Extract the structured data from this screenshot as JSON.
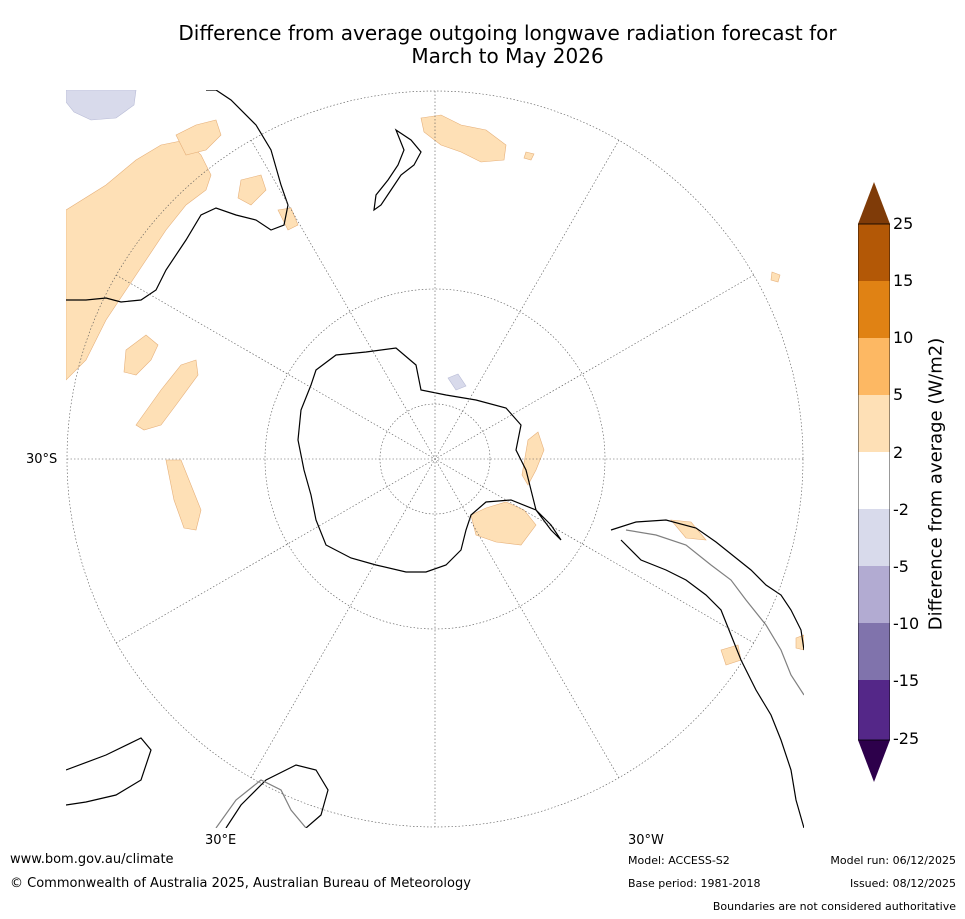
{
  "title": {
    "line1": "Difference from average outgoing longwave radiation forecast for",
    "line2": "March to May 2026"
  },
  "map": {
    "labels": {
      "lat_30s": "30°S",
      "lon_30e": "30°E",
      "lon_30w": "30°W"
    },
    "colors": {
      "land_outline": "#000000",
      "anomaly_positive_light": "#fee0b6",
      "anomaly_negative_light": "#d8daeb",
      "graticule": "#555555"
    }
  },
  "legend": {
    "title": "Difference from average (W/m2)",
    "ticks": [
      "25",
      "15",
      "10",
      "5",
      "2",
      "-2",
      "-5",
      "-10",
      "-15",
      "-25"
    ],
    "colors": {
      "over_max": "#7f3b08",
      "bins": [
        "#b35806",
        "#e08214",
        "#fdb863",
        "#fee0b6",
        "#ffffff",
        "#d8daeb",
        "#b2abd2",
        "#8073ac",
        "#542788"
      ],
      "under_min": "#2d004b"
    }
  },
  "footer": {
    "website": "www.bom.gov.au/climate",
    "copyright": "© Commonwealth of Australia 2025, Australian Bureau of Meteorology",
    "model": "Model: ACCESS-S2",
    "base_period": "Base period: 1981-2018",
    "model_run": "Model run: 06/12/2025",
    "issued": "Issued: 08/12/2025",
    "disclaimer": "Boundaries are not considered authoritative"
  }
}
